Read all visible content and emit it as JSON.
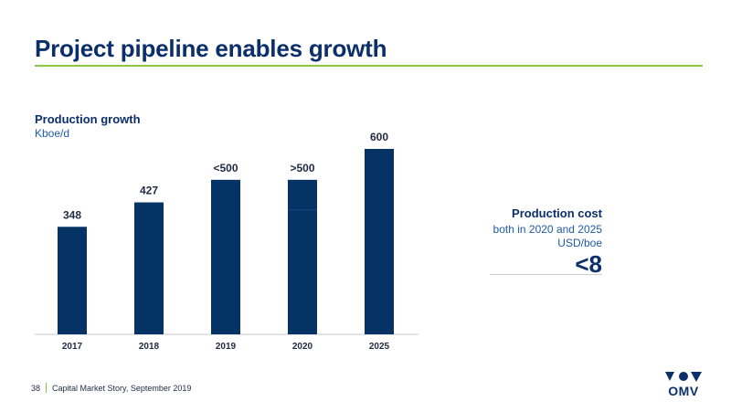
{
  "slide": {
    "title": "Project pipeline enables growth",
    "footer_page": "38",
    "footer_text": "Capital Market Story, September 2019",
    "logo_text": "OMV"
  },
  "production_cost": {
    "title": "Production cost",
    "subtitle": "both in 2020 and 2025",
    "unit": "USD/boe",
    "value": "<8"
  },
  "colors": {
    "bar": "#063366",
    "title": "#0b2f6b",
    "accent_green": "#8cc63f"
  },
  "chart_data": {
    "type": "bar",
    "title": "Production growth",
    "ylabel": "Kboe/d",
    "categories": [
      "2017",
      "2018",
      "2019",
      "2020",
      "2025"
    ],
    "values": [
      348,
      427,
      500,
      500,
      600
    ],
    "data_labels": [
      "348",
      "427",
      "<500",
      ">500",
      "600"
    ],
    "ylim": [
      0,
      600
    ],
    "grid": false,
    "legend": "none"
  }
}
